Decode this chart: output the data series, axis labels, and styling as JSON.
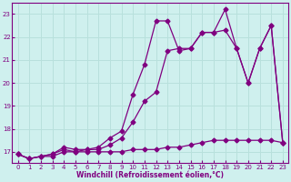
{
  "title": "",
  "xlabel": "Windchill (Refroidissement éolien,°C)",
  "background_color": "#cff0ee",
  "grid_color": "#b8e0dc",
  "line_color": "#800080",
  "x_values": [
    0,
    1,
    2,
    3,
    4,
    5,
    6,
    7,
    8,
    9,
    10,
    11,
    12,
    13,
    14,
    15,
    16,
    17,
    18,
    19,
    20,
    21,
    22,
    23
  ],
  "series": [
    [
      16.9,
      16.7,
      16.8,
      16.8,
      17.0,
      17.0,
      17.0,
      17.0,
      17.0,
      17.0,
      17.1,
      17.1,
      17.1,
      17.2,
      17.2,
      17.3,
      17.4,
      17.5,
      17.5,
      17.5,
      17.5,
      17.5,
      17.5,
      17.4
    ],
    [
      16.9,
      16.7,
      16.8,
      16.9,
      17.1,
      17.0,
      17.1,
      17.1,
      17.3,
      17.6,
      18.3,
      19.2,
      19.6,
      21.4,
      21.5,
      21.5,
      22.2,
      22.2,
      22.3,
      21.5,
      20.0,
      21.5,
      22.5,
      17.4
    ],
    [
      16.9,
      16.7,
      16.8,
      16.9,
      17.2,
      17.1,
      17.1,
      17.2,
      17.6,
      17.9,
      19.5,
      20.8,
      22.7,
      22.7,
      21.4,
      21.5,
      22.2,
      22.2,
      23.2,
      21.5,
      20.0,
      21.5,
      22.5,
      17.4
    ]
  ],
  "ylim_min": 16.5,
  "ylim_max": 23.5,
  "xlim_min": -0.5,
  "xlim_max": 23.5,
  "yticks": [
    17,
    18,
    19,
    20,
    21,
    22,
    23
  ],
  "xticks": [
    0,
    1,
    2,
    3,
    4,
    5,
    6,
    7,
    8,
    9,
    10,
    11,
    12,
    13,
    14,
    15,
    16,
    17,
    18,
    19,
    20,
    21,
    22,
    23
  ],
  "marker": "D",
  "markersize": 2.5,
  "linewidth": 0.9,
  "tick_fontsize": 5.0,
  "label_fontsize": 5.5
}
